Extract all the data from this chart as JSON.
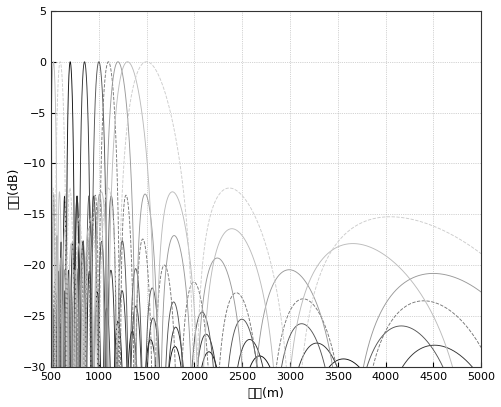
{
  "xlim": [
    500,
    5000
  ],
  "ylim": [
    -30,
    5
  ],
  "xlabel": "距离(m)",
  "ylabel": "功率(dB)",
  "yticks": [
    5,
    0,
    -5,
    -10,
    -15,
    -20,
    -25,
    -30
  ],
  "xticks": [
    500,
    1000,
    1500,
    2000,
    2500,
    3000,
    3500,
    4000,
    4500,
    5000
  ],
  "grid_color": "#aaaaaa",
  "bg_color": "#ffffff",
  "figsize": [
    5.02,
    4.07
  ],
  "dpi": 100,
  "curves": [
    {
      "R0": 700,
      "dr": 45,
      "N": 30,
      "color": "#111111",
      "ls": "-",
      "lw": 0.65
    },
    {
      "R0": 850,
      "dr": 60,
      "N": 25,
      "color": "#333333",
      "ls": "-",
      "lw": 0.65
    },
    {
      "R0": 1000,
      "dr": 80,
      "N": 20,
      "color": "#555555",
      "ls": "-",
      "lw": 0.65
    },
    {
      "R0": 1100,
      "dr": 110,
      "N": 15,
      "color": "#777777",
      "ls": "--",
      "lw": 0.65
    },
    {
      "R0": 1200,
      "dr": 160,
      "N": 11,
      "color": "#999999",
      "ls": "-",
      "lw": 0.65
    },
    {
      "R0": 1300,
      "dr": 240,
      "N": 8,
      "color": "#bbbbbb",
      "ls": "-",
      "lw": 0.65
    },
    {
      "R0": 1500,
      "dr": 380,
      "N": 6,
      "color": "#cccccc",
      "ls": "--",
      "lw": 0.65
    }
  ]
}
